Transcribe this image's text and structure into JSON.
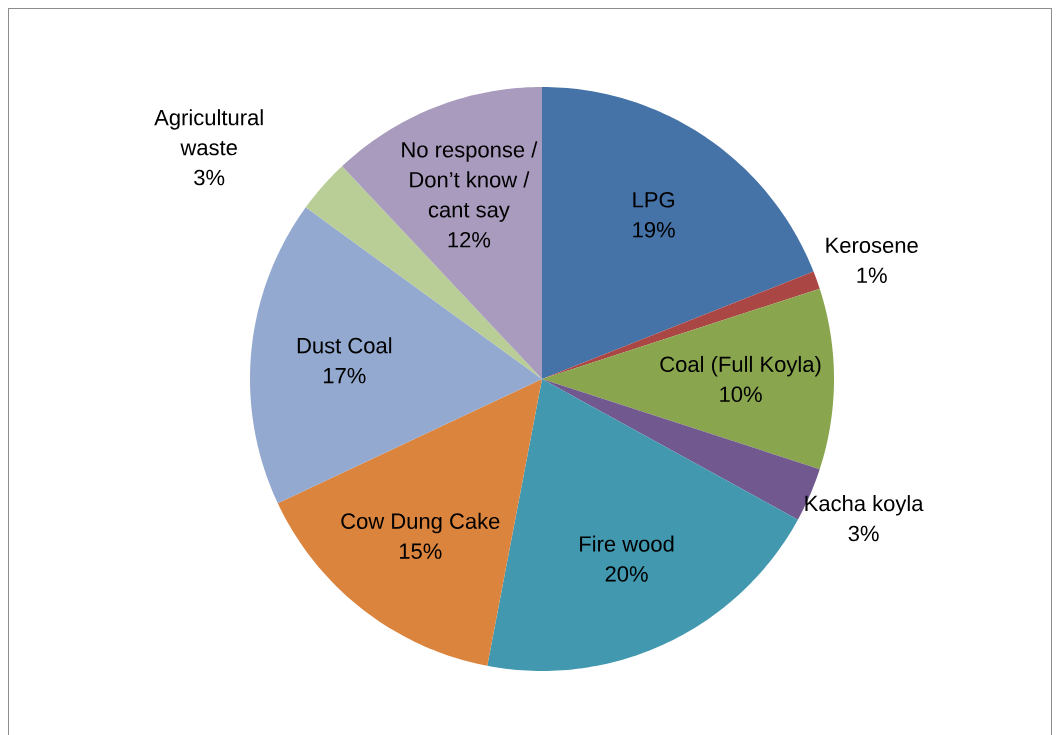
{
  "chart_data": {
    "type": "pie",
    "categories": [
      "LPG",
      "Kerosene",
      "Coal (Full Koyla)",
      "Kacha koyla",
      "Fire wood",
      "Cow Dung Cake",
      "Dust Coal",
      "Agricultural waste",
      "No response / Don’t know / cant say"
    ],
    "values": [
      19,
      1,
      10,
      3,
      20,
      15,
      17,
      3,
      12
    ],
    "colors": [
      "#4572a7",
      "#aa4643",
      "#89a54e",
      "#71588f",
      "#4198af",
      "#db843d",
      "#93a9cf",
      "#b9cd96",
      "#a99bbd"
    ],
    "value_labels": [
      "19%",
      "1%",
      "10%",
      "3%",
      "20%",
      "15%",
      "17%",
      "3%",
      "12%"
    ]
  }
}
